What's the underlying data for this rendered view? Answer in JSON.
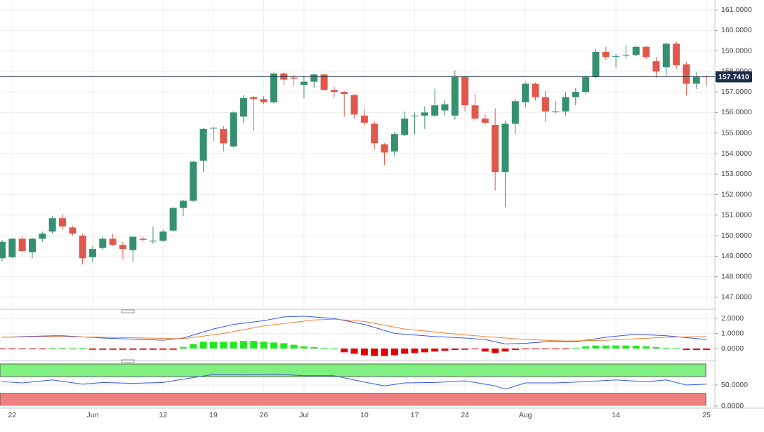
{
  "chart_data": [
    {
      "type": "candlestick",
      "categories": [
        null,
        "22",
        null,
        null,
        null,
        null,
        null,
        null,
        null,
        "Jun",
        null,
        null,
        null,
        null,
        null,
        null,
        "12",
        null,
        null,
        null,
        null,
        "19",
        null,
        null,
        null,
        null,
        "26",
        null,
        null,
        null,
        "Jul",
        null,
        null,
        null,
        null,
        null,
        "10",
        null,
        null,
        null,
        null,
        "17",
        null,
        null,
        null,
        null,
        "24",
        null,
        null,
        null,
        null,
        null,
        "Aug",
        null,
        null,
        null,
        null,
        null,
        null,
        null,
        null,
        "14",
        null,
        null,
        null,
        null,
        null,
        null,
        null,
        null,
        "25"
      ],
      "open": [
        148.9,
        148.95,
        149.85,
        149.2,
        149.85,
        150.2,
        150.85,
        150.4,
        150.0,
        148.95,
        149.4,
        149.85,
        149.55,
        149.3,
        149.85,
        149.75,
        149.75,
        150.25,
        151.35,
        151.7,
        153.65,
        155.25,
        155.2,
        154.35,
        155.8,
        156.75,
        156.65,
        156.5,
        157.9,
        157.7,
        157.35,
        157.5,
        157.85,
        157.1,
        157.0,
        156.85,
        155.85,
        155.45,
        154.45,
        154.1,
        154.9,
        155.85,
        155.85,
        155.85,
        156.1,
        155.85,
        157.75,
        156.35,
        155.7,
        155.4,
        153.1,
        155.45,
        156.5,
        157.4,
        156.75,
        156.05,
        156.05,
        156.75,
        157.0,
        157.75,
        158.95,
        158.75,
        158.8,
        158.8,
        159.2,
        158.5,
        158.2,
        159.35,
        158.35,
        157.4,
        157.75
      ],
      "high": [
        149.8,
        149.9,
        149.95,
        149.9,
        150.2,
        150.95,
        151.05,
        150.5,
        150.1,
        149.5,
        149.95,
        150.1,
        149.7,
        149.95,
        149.95,
        150.45,
        150.3,
        151.4,
        151.75,
        153.65,
        155.25,
        155.3,
        155.35,
        156.05,
        156.85,
        156.8,
        156.8,
        157.95,
        157.95,
        157.85,
        157.8,
        157.9,
        157.9,
        157.25,
        157.05,
        156.9,
        156.15,
        155.55,
        154.5,
        155.05,
        156.05,
        156.0,
        156.3,
        157.15,
        156.6,
        158.05,
        157.8,
        156.9,
        155.9,
        156.2,
        155.6,
        156.65,
        157.5,
        157.45,
        157.05,
        156.55,
        157.0,
        157.2,
        157.8,
        159.1,
        159.2,
        158.85,
        159.3,
        159.25,
        159.25,
        158.7,
        159.4,
        159.45,
        158.45,
        157.95,
        157.8
      ],
      "low": [
        148.75,
        148.9,
        149.2,
        148.9,
        149.7,
        150.1,
        150.3,
        150.0,
        148.6,
        148.7,
        149.3,
        149.5,
        148.85,
        148.7,
        149.7,
        149.6,
        149.7,
        150.2,
        150.95,
        151.65,
        153.1,
        154.6,
        154.1,
        154.3,
        155.5,
        155.1,
        156.4,
        156.45,
        157.35,
        157.3,
        156.7,
        157.2,
        157.05,
        156.75,
        155.8,
        155.7,
        155.35,
        154.2,
        153.45,
        153.85,
        154.85,
        154.95,
        155.2,
        155.8,
        155.85,
        155.65,
        156.05,
        155.6,
        155.4,
        152.2,
        151.4,
        154.95,
        156.25,
        156.6,
        155.55,
        155.95,
        155.85,
        156.35,
        156.9,
        157.65,
        158.55,
        158.2,
        158.6,
        158.75,
        158.6,
        157.7,
        157.8,
        158.1,
        156.85,
        157.15,
        157.3
      ],
      "close": [
        149.7,
        149.85,
        149.25,
        149.85,
        150.1,
        150.85,
        150.45,
        150.1,
        148.9,
        149.35,
        149.85,
        149.55,
        149.35,
        149.95,
        149.8,
        149.75,
        150.2,
        151.35,
        151.7,
        153.6,
        155.2,
        155.25,
        154.5,
        156.0,
        156.7,
        156.65,
        156.5,
        157.9,
        157.6,
        157.65,
        157.5,
        157.85,
        157.1,
        157.0,
        156.9,
        155.9,
        155.5,
        154.5,
        154.05,
        154.95,
        155.7,
        155.85,
        156.0,
        156.35,
        156.4,
        157.75,
        156.35,
        155.7,
        155.5,
        153.1,
        155.45,
        156.55,
        157.4,
        156.75,
        156.05,
        156.05,
        156.75,
        157.0,
        157.75,
        158.95,
        158.7,
        158.75,
        158.8,
        159.2,
        158.7,
        158.0,
        159.35,
        158.3,
        157.4,
        157.75,
        157.741
      ],
      "up_color": "#35906f",
      "down_color": "#e0584b",
      "ylim": [
        146.45,
        161.48
      ],
      "yticks": [
        {
          "value": 147,
          "label": "147.0000"
        },
        {
          "value": 148,
          "label": "148.0000"
        },
        {
          "value": 149,
          "label": "149.0000"
        },
        {
          "value": 150,
          "label": "150.0000"
        },
        {
          "value": 151,
          "label": "151.0000"
        },
        {
          "value": 152,
          "label": "152.0000"
        },
        {
          "value": 153,
          "label": "153.0000"
        },
        {
          "value": 154,
          "label": "154.0000"
        },
        {
          "value": 155,
          "label": "155.0000"
        },
        {
          "value": 156,
          "label": "156.0000"
        },
        {
          "value": 157,
          "label": "157.0000"
        },
        {
          "value": 158,
          "label": "158.0000"
        },
        {
          "value": 159,
          "label": "159.0000"
        },
        {
          "value": 160,
          "label": "160.0000"
        },
        {
          "value": 161,
          "label": "161.0000"
        }
      ],
      "last_price": {
        "value": 157.741,
        "label": "157.7410"
      },
      "grid": true
    },
    {
      "type": "macd",
      "histogram": [
        -0.05,
        -0.05,
        -0.05,
        -0.05,
        -0.05,
        0.05,
        0.05,
        0.05,
        0.05,
        -0.08,
        -0.08,
        -0.08,
        -0.08,
        -0.08,
        -0.08,
        -0.08,
        -0.08,
        -0.08,
        0.1,
        0.3,
        0.45,
        0.45,
        0.45,
        0.45,
        0.5,
        0.5,
        0.45,
        0.4,
        0.35,
        0.25,
        0.15,
        0.1,
        0.05,
        0.02,
        -0.25,
        -0.35,
        -0.45,
        -0.5,
        -0.5,
        -0.45,
        -0.35,
        -0.3,
        -0.25,
        -0.2,
        -0.15,
        -0.1,
        -0.08,
        -0.05,
        -0.2,
        -0.3,
        -0.2,
        -0.1,
        -0.05,
        -0.05,
        -0.05,
        -0.05,
        -0.05,
        0.03,
        0.15,
        0.2,
        0.2,
        0.2,
        0.2,
        0.18,
        0.15,
        0.1,
        0.05,
        0.02,
        -0.1,
        -0.1,
        -0.1
      ],
      "up_color": "#22e822",
      "down_color": "#e60000",
      "series": [
        {
          "color": "#3355ee",
          "x": [
            0,
            5,
            6,
            10,
            16,
            18,
            21,
            23,
            26,
            28,
            30,
            33,
            36,
            39,
            43,
            46,
            48,
            50,
            52,
            54,
            57,
            60,
            63,
            66,
            70
          ],
          "values": [
            0.75,
            0.85,
            0.85,
            0.7,
            0.55,
            0.7,
            1.3,
            1.6,
            1.85,
            2.1,
            2.15,
            2.0,
            1.6,
            1.0,
            0.8,
            0.7,
            0.6,
            0.3,
            0.35,
            0.45,
            0.45,
            0.75,
            0.95,
            0.85,
            0.6
          ]
        },
        {
          "color": "#f08030",
          "x": [
            0,
            5,
            10,
            18,
            22,
            26,
            31,
            33,
            36,
            40,
            46,
            52,
            56,
            60,
            66,
            70
          ],
          "values": [
            0.75,
            0.8,
            0.75,
            0.65,
            1.0,
            1.5,
            1.9,
            1.95,
            1.8,
            1.3,
            0.9,
            0.6,
            0.5,
            0.55,
            0.75,
            0.8
          ]
        }
      ],
      "ylim": [
        -0.7,
        2.33
      ],
      "yticks": [
        {
          "value": 0,
          "label": "0.0000"
        },
        {
          "value": 1,
          "label": "1.0000"
        },
        {
          "value": 2,
          "label": "2.0000"
        }
      ]
    },
    {
      "type": "rsi",
      "zones": [
        {
          "range": [
            70,
            100
          ],
          "color": "#80f080"
        },
        {
          "range": [
            0,
            30
          ],
          "color": "#f08080"
        }
      ],
      "series": [
        {
          "color": "#3355ee",
          "x": [
            0,
            2,
            5,
            8,
            10,
            13,
            16,
            18,
            21,
            24,
            27,
            30,
            33,
            36,
            38,
            40,
            43,
            46,
            48,
            49,
            50,
            52,
            55,
            58,
            61,
            64,
            66,
            68,
            70
          ],
          "values": [
            58,
            55,
            62,
            52,
            56,
            54,
            56,
            64,
            75,
            74,
            76,
            72,
            72,
            57,
            48,
            55,
            56,
            60,
            52,
            48,
            40,
            55,
            55,
            58,
            62,
            58,
            62,
            50,
            52
          ]
        }
      ],
      "ylim": [
        -5,
        103.3
      ],
      "yticks": [
        {
          "value": 0,
          "label": "0.0000"
        },
        {
          "value": 50,
          "label": "50.0000"
        }
      ]
    }
  ]
}
